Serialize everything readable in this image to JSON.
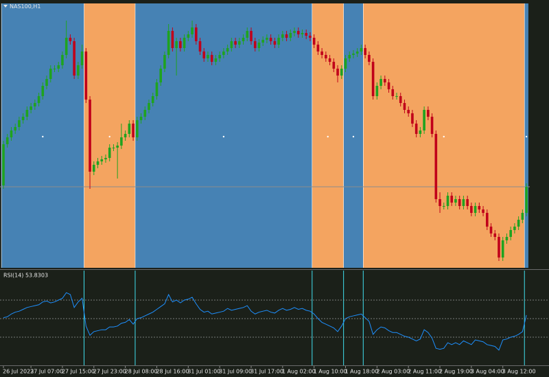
{
  "chart_data": [
    {
      "type": "candlestick",
      "title": "NAS100,H1",
      "categories": [
        "26 Jul 2023",
        null,
        null,
        null,
        null,
        null,
        null,
        "27 Jul 07:00",
        null,
        null,
        null,
        null,
        null,
        null,
        null,
        "27 Jul 15:00",
        null,
        null,
        null,
        null,
        null,
        null,
        null,
        "27 Jul 23:00",
        null,
        null,
        null,
        null,
        null,
        null,
        null,
        "28 Jul 08:00",
        null,
        null,
        null,
        null,
        null,
        null,
        null,
        "28 Jul 16:00",
        null,
        null,
        null,
        null,
        null,
        null,
        null,
        "31 Jul 01:00",
        null,
        null,
        null,
        null,
        null,
        null,
        null,
        "31 Jul 09:00",
        null,
        null,
        null,
        null,
        null,
        null,
        null,
        "31 Jul 17:00",
        null,
        null,
        null,
        null,
        null,
        null,
        null,
        "1 Aug 02:00",
        null,
        null,
        null,
        null,
        null,
        null,
        null,
        "1 Aug 10:00",
        null,
        null,
        null,
        null,
        null,
        null,
        null,
        "1 Aug 18:00",
        null,
        null,
        null,
        null,
        null,
        null,
        null,
        "2 Aug 03:00",
        null,
        null,
        null,
        null,
        null,
        null,
        null,
        "2 Aug 11:00",
        null,
        null,
        null,
        null,
        null,
        null,
        null,
        "2 Aug 19:00",
        null,
        null,
        null,
        null,
        null,
        null,
        null,
        "3 Aug 04:00",
        null,
        null,
        null,
        null,
        null,
        null,
        null,
        "3 Aug 12:00",
        null,
        null,
        null,
        null,
        null,
        null
      ],
      "open": [
        15460,
        15580,
        15600,
        15620,
        15630,
        15650,
        15660,
        15680,
        15690,
        15700,
        15720,
        15750,
        15770,
        15800,
        15800,
        15810,
        15840,
        15890,
        15880,
        15780,
        15810,
        15850,
        15710,
        15500,
        15520,
        15530,
        15536,
        15540,
        15570,
        15570,
        15576,
        15600,
        15610,
        15640,
        15600,
        15650,
        15660,
        15680,
        15700,
        15720,
        15760,
        15800,
        15840,
        15910,
        15860,
        15880,
        15860,
        15890,
        15900,
        15920,
        15880,
        15850,
        15830,
        15840,
        15820,
        15830,
        15840,
        15850,
        15860,
        15880,
        15870,
        15880,
        15890,
        15910,
        15880,
        15860,
        15876,
        15884,
        15890,
        15880,
        15870,
        15890,
        15900,
        15890,
        15904,
        15910,
        15900,
        15904,
        15896,
        15890,
        15870,
        15850,
        15840,
        15830,
        15820,
        15800,
        15780,
        15800,
        15830,
        15840,
        15844,
        15850,
        15860,
        15840,
        15820,
        15720,
        15750,
        15770,
        15760,
        15740,
        15720,
        15720,
        15700,
        15680,
        15670,
        15640,
        15610,
        15620,
        15680,
        15660,
        15610,
        15420,
        15400,
        15400,
        15430,
        15410,
        15420,
        15400,
        15420,
        15400,
        15380,
        15400,
        15390,
        15380,
        15340,
        15320,
        15310,
        15250,
        15300,
        15310,
        15330,
        15340,
        15360,
        15380
      ],
      "high": [
        15590,
        15610,
        15630,
        15640,
        15660,
        15670,
        15690,
        15700,
        15710,
        15730,
        15760,
        15780,
        15810,
        15810,
        15820,
        15850,
        15940,
        15900,
        15890,
        15820,
        15870,
        15860,
        15720,
        15530,
        15540,
        15546,
        15550,
        15580,
        15580,
        15586,
        15640,
        15620,
        15650,
        15650,
        15660,
        15670,
        15690,
        15710,
        15730,
        15770,
        15810,
        15850,
        15930,
        15920,
        15890,
        15890,
        15900,
        15910,
        15940,
        15930,
        15890,
        15860,
        15850,
        15850,
        15840,
        15850,
        15860,
        15870,
        15890,
        15890,
        15890,
        15900,
        15920,
        15920,
        15890,
        15886,
        15894,
        15900,
        15900,
        15890,
        15900,
        15910,
        15910,
        15914,
        15920,
        15920,
        15914,
        15914,
        15906,
        15900,
        15880,
        15860,
        15850,
        15840,
        15830,
        15810,
        15810,
        15840,
        15850,
        15854,
        15860,
        15870,
        15870,
        15850,
        15830,
        15760,
        15780,
        15780,
        15770,
        15750,
        15730,
        15730,
        15710,
        15690,
        15680,
        15650,
        15630,
        15690,
        15690,
        15670,
        15620,
        15440,
        15410,
        15440,
        15440,
        15430,
        15430,
        15430,
        15430,
        15410,
        15410,
        15410,
        15400,
        15390,
        15350,
        15330,
        15320,
        15310,
        15320,
        15340,
        15350,
        15370,
        15390,
        15466
      ],
      "low": [
        15450,
        15570,
        15590,
        15610,
        15620,
        15640,
        15650,
        15670,
        15680,
        15690,
        15710,
        15740,
        15760,
        15790,
        15790,
        15800,
        15830,
        15870,
        15770,
        15770,
        15800,
        15700,
        15450,
        15490,
        15510,
        15520,
        15526,
        15530,
        15560,
        15480,
        15566,
        15590,
        15600,
        15590,
        15590,
        15640,
        15650,
        15670,
        15690,
        15710,
        15750,
        15790,
        15830,
        15850,
        15780,
        15850,
        15850,
        15880,
        15890,
        15870,
        15840,
        15820,
        15820,
        15810,
        15810,
        15820,
        15830,
        15840,
        15850,
        15860,
        15860,
        15870,
        15880,
        15870,
        15850,
        15850,
        15866,
        15874,
        15870,
        15860,
        15860,
        15880,
        15880,
        15880,
        15894,
        15890,
        15890,
        15886,
        15880,
        15860,
        15840,
        15830,
        15820,
        15810,
        15790,
        15760,
        15770,
        15790,
        15820,
        15830,
        15834,
        15840,
        15830,
        15810,
        15710,
        15710,
        15740,
        15750,
        15730,
        15710,
        15710,
        15690,
        15670,
        15660,
        15630,
        15600,
        15600,
        15610,
        15650,
        15600,
        15410,
        15380,
        15390,
        15390,
        15400,
        15400,
        15390,
        15390,
        15390,
        15370,
        15370,
        15380,
        15370,
        15330,
        15310,
        15300,
        15240,
        15240,
        15290,
        15300,
        15320,
        15330,
        15350,
        15370
      ],
      "close": [
        15580,
        15600,
        15620,
        15630,
        15650,
        15660,
        15680,
        15690,
        15700,
        15720,
        15750,
        15770,
        15800,
        15800,
        15810,
        15840,
        15890,
        15880,
        15780,
        15810,
        15850,
        15710,
        15500,
        15520,
        15530,
        15536,
        15540,
        15570,
        15570,
        15576,
        15600,
        15610,
        15640,
        15600,
        15650,
        15660,
        15680,
        15700,
        15720,
        15760,
        15800,
        15840,
        15910,
        15860,
        15880,
        15860,
        15890,
        15900,
        15920,
        15880,
        15850,
        15830,
        15840,
        15820,
        15830,
        15840,
        15850,
        15860,
        15880,
        15870,
        15880,
        15890,
        15910,
        15880,
        15860,
        15876,
        15884,
        15890,
        15880,
        15870,
        15890,
        15900,
        15890,
        15904,
        15910,
        15900,
        15904,
        15896,
        15890,
        15870,
        15850,
        15840,
        15830,
        15820,
        15800,
        15780,
        15800,
        15830,
        15840,
        15844,
        15850,
        15860,
        15840,
        15820,
        15720,
        15750,
        15770,
        15760,
        15740,
        15720,
        15720,
        15700,
        15680,
        15670,
        15640,
        15610,
        15620,
        15680,
        15660,
        15610,
        15420,
        15400,
        15400,
        15430,
        15410,
        15420,
        15400,
        15420,
        15400,
        15380,
        15400,
        15390,
        15380,
        15340,
        15320,
        15310,
        15250,
        15300,
        15310,
        15330,
        15340,
        15360,
        15380,
        15456
      ],
      "up_color": "#1fa31f",
      "down_color": "#c0001a",
      "ylim": [
        15220,
        15990
      ],
      "price_line": 15456,
      "zones": [
        {
          "start": 0,
          "end": 20,
          "color": "#4682b4"
        },
        {
          "start": 21,
          "end": 33,
          "color": "#f4a460"
        },
        {
          "start": 34,
          "end": 78,
          "color": "#4682b4"
        },
        {
          "start": 79,
          "end": 86,
          "color": "#f4a460"
        },
        {
          "start": 87,
          "end": 91,
          "color": "#4682b4"
        },
        {
          "start": 92,
          "end": 132,
          "color": "#f4a460"
        },
        {
          "start": 133,
          "end": 133,
          "color": "#4682b4"
        }
      ]
    },
    {
      "type": "line",
      "title": "RSI(14) 53.8303",
      "color": "#1e90ff",
      "ylim": [
        0,
        100
      ],
      "levels": [
        30,
        50,
        70
      ],
      "values": [
        51,
        52,
        55,
        57,
        58,
        60,
        62,
        63,
        64,
        65,
        68,
        69,
        67,
        68,
        70,
        72,
        78,
        76,
        62,
        68,
        72,
        42,
        32,
        36,
        37,
        38,
        38,
        41,
        41,
        42,
        45,
        46,
        49,
        44,
        50,
        51,
        53,
        55,
        57,
        60,
        63,
        66,
        76,
        68,
        70,
        67,
        70,
        71,
        73,
        66,
        60,
        57,
        58,
        55,
        56,
        57,
        58,
        61,
        59,
        60,
        61,
        62,
        64,
        58,
        55,
        57,
        58,
        59,
        57,
        56,
        59,
        61,
        59,
        60,
        62,
        60,
        61,
        59,
        58,
        55,
        50,
        46,
        44,
        42,
        40,
        36,
        42,
        50,
        52,
        53,
        54,
        55,
        51,
        47,
        33,
        38,
        41,
        40,
        37,
        35,
        35,
        33,
        31,
        30,
        28,
        26,
        28,
        38,
        35,
        29,
        18,
        17,
        18,
        24,
        22,
        24,
        22,
        26,
        24,
        22,
        27,
        26,
        25,
        22,
        21,
        20,
        16,
        27,
        28,
        30,
        31,
        33,
        36,
        53.8303
      ]
    }
  ]
}
